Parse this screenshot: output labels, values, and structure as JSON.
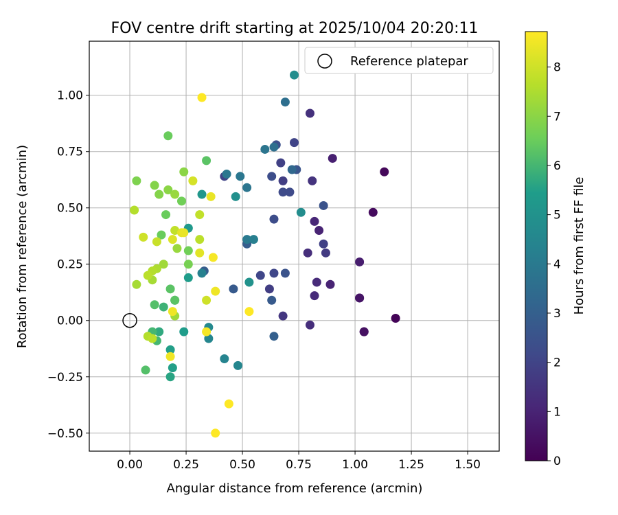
{
  "chart_data": {
    "type": "scatter",
    "title": "FOV centre drift starting at 2025/10/04 20:20:11",
    "xlabel": "Angular distance from reference (arcmin)",
    "ylabel": "Rotation from reference (arcmin)",
    "xlim": [
      -0.18,
      1.64
    ],
    "ylim": [
      -0.58,
      1.24
    ],
    "xticks": [
      0.0,
      0.25,
      0.5,
      0.75,
      1.0,
      1.25,
      1.5
    ],
    "xtick_labels": [
      "0.00",
      "0.25",
      "0.50",
      "0.75",
      "1.00",
      "1.25",
      "1.50"
    ],
    "yticks": [
      -0.5,
      -0.25,
      0.0,
      0.25,
      0.5,
      0.75,
      1.0
    ],
    "ytick_labels": [
      "−0.50",
      "−0.25",
      "0.00",
      "0.25",
      "0.50",
      "0.75",
      "1.00"
    ],
    "grid": true,
    "legend": {
      "position": "top-right",
      "entries": [
        "Reference platepar"
      ]
    },
    "reference_point": {
      "x": 0.0,
      "y": 0.0,
      "label": "Reference platepar"
    },
    "colorbar": {
      "label": "Hours from first FF file",
      "colormap": "viridis",
      "range": [
        0,
        8.72
      ],
      "ticks": [
        0,
        1,
        2,
        3,
        4,
        5,
        6,
        7,
        8
      ],
      "tick_labels": [
        "0",
        "1",
        "2",
        "3",
        "4",
        "5",
        "6",
        "7",
        "8"
      ],
      "stops": [
        "#440154",
        "#482777",
        "#3f4a8a",
        "#31678e",
        "#26838f",
        "#1f9d8a",
        "#6cce5a",
        "#b6de2b",
        "#fee825"
      ]
    },
    "points": [
      {
        "x": 1.18,
        "y": 0.01,
        "h": 0.1
      },
      {
        "x": 1.13,
        "y": 0.66,
        "h": 0.2
      },
      {
        "x": 1.08,
        "y": 0.48,
        "h": 0.3
      },
      {
        "x": 1.04,
        "y": -0.05,
        "h": 0.4
      },
      {
        "x": 1.04,
        "y": -0.05,
        "h": 0.45
      },
      {
        "x": 1.02,
        "y": 0.1,
        "h": 0.5
      },
      {
        "x": 1.02,
        "y": 0.1,
        "h": 0.55
      },
      {
        "x": 1.02,
        "y": 0.26,
        "h": 0.8
      },
      {
        "x": 0.9,
        "y": 0.72,
        "h": 0.9
      },
      {
        "x": 0.89,
        "y": 0.16,
        "h": 1.0
      },
      {
        "x": 0.84,
        "y": 0.4,
        "h": 1.0
      },
      {
        "x": 0.82,
        "y": 0.44,
        "h": 1.1
      },
      {
        "x": 0.83,
        "y": 0.17,
        "h": 1.2
      },
      {
        "x": 0.82,
        "y": 0.11,
        "h": 1.2
      },
      {
        "x": 0.8,
        "y": -0.02,
        "h": 1.3
      },
      {
        "x": 0.79,
        "y": 0.3,
        "h": 1.3
      },
      {
        "x": 0.8,
        "y": 0.92,
        "h": 1.4
      },
      {
        "x": 0.81,
        "y": 0.62,
        "h": 1.5
      },
      {
        "x": 0.68,
        "y": 0.02,
        "h": 1.6
      },
      {
        "x": 0.87,
        "y": 0.3,
        "h": 1.7
      },
      {
        "x": 0.86,
        "y": 0.34,
        "h": 1.9
      },
      {
        "x": 0.62,
        "y": 0.14,
        "h": 1.8
      },
      {
        "x": 0.68,
        "y": 0.62,
        "h": 1.8
      },
      {
        "x": 0.67,
        "y": 0.7,
        "h": 1.9
      },
      {
        "x": 0.42,
        "y": 0.64,
        "h": 2.0
      },
      {
        "x": 0.73,
        "y": 0.79,
        "h": 2.0
      },
      {
        "x": 0.58,
        "y": 0.2,
        "h": 2.1
      },
      {
        "x": 0.64,
        "y": 0.21,
        "h": 2.1
      },
      {
        "x": 0.68,
        "y": 0.57,
        "h": 2.2
      },
      {
        "x": 0.71,
        "y": 0.57,
        "h": 2.2
      },
      {
        "x": 0.64,
        "y": 0.45,
        "h": 2.3
      },
      {
        "x": 0.63,
        "y": 0.64,
        "h": 2.3
      },
      {
        "x": 0.65,
        "y": 0.78,
        "h": 2.4
      },
      {
        "x": 0.69,
        "y": 0.21,
        "h": 2.5
      },
      {
        "x": 0.86,
        "y": 0.51,
        "h": 2.5
      },
      {
        "x": 0.74,
        "y": 0.67,
        "h": 2.6
      },
      {
        "x": 0.63,
        "y": 0.09,
        "h": 2.8
      },
      {
        "x": 0.46,
        "y": 0.14,
        "h": 2.8
      },
      {
        "x": 0.52,
        "y": 0.34,
        "h": 2.9
      },
      {
        "x": 0.33,
        "y": 0.22,
        "h": 2.9
      },
      {
        "x": 0.64,
        "y": -0.07,
        "h": 3.0
      },
      {
        "x": 0.72,
        "y": 0.67,
        "h": 3.3
      },
      {
        "x": 0.69,
        "y": 0.97,
        "h": 3.6
      },
      {
        "x": 0.64,
        "y": 0.77,
        "h": 3.6
      },
      {
        "x": 0.6,
        "y": 0.76,
        "h": 3.8
      },
      {
        "x": 0.52,
        "y": 0.59,
        "h": 3.8
      },
      {
        "x": 0.49,
        "y": 0.64,
        "h": 3.9
      },
      {
        "x": 0.43,
        "y": 0.65,
        "h": 3.9
      },
      {
        "x": 0.52,
        "y": 0.36,
        "h": 4.0
      },
      {
        "x": 0.55,
        "y": 0.36,
        "h": 4.2
      },
      {
        "x": 0.32,
        "y": 0.21,
        "h": 4.3
      },
      {
        "x": 0.42,
        "y": -0.17,
        "h": 4.4
      },
      {
        "x": 0.48,
        "y": -0.2,
        "h": 4.5
      },
      {
        "x": 0.35,
        "y": -0.08,
        "h": 4.5
      },
      {
        "x": 0.35,
        "y": -0.03,
        "h": 4.6
      },
      {
        "x": 0.73,
        "y": 1.09,
        "h": 4.8
      },
      {
        "x": 0.76,
        "y": 0.48,
        "h": 4.8
      },
      {
        "x": 0.47,
        "y": 0.55,
        "h": 4.9
      },
      {
        "x": 0.53,
        "y": 0.17,
        "h": 5.0
      },
      {
        "x": 0.32,
        "y": 0.56,
        "h": 5.2
      },
      {
        "x": 0.26,
        "y": 0.41,
        "h": 5.3
      },
      {
        "x": 0.26,
        "y": 0.19,
        "h": 5.4
      },
      {
        "x": 0.24,
        "y": -0.05,
        "h": 5.4
      },
      {
        "x": 0.19,
        "y": -0.21,
        "h": 5.5
      },
      {
        "x": 0.18,
        "y": -0.13,
        "h": 5.5
      },
      {
        "x": 0.18,
        "y": -0.25,
        "h": 5.6
      },
      {
        "x": 0.13,
        "y": -0.05,
        "h": 5.7
      },
      {
        "x": 0.2,
        "y": 0.09,
        "h": 5.8
      },
      {
        "x": 0.15,
        "y": 0.06,
        "h": 5.9
      },
      {
        "x": 0.12,
        "y": -0.09,
        "h": 6.0
      },
      {
        "x": 0.1,
        "y": -0.05,
        "h": 6.0
      },
      {
        "x": 0.07,
        "y": -0.22,
        "h": 6.2
      },
      {
        "x": 0.11,
        "y": 0.07,
        "h": 6.2
      },
      {
        "x": 0.18,
        "y": 0.14,
        "h": 6.3
      },
      {
        "x": 0.2,
        "y": 0.09,
        "h": 6.3
      },
      {
        "x": 0.34,
        "y": 0.71,
        "h": 6.3
      },
      {
        "x": 0.17,
        "y": 0.82,
        "h": 6.5
      },
      {
        "x": 0.14,
        "y": 0.38,
        "h": 6.5
      },
      {
        "x": 0.16,
        "y": 0.47,
        "h": 6.5
      },
      {
        "x": 0.23,
        "y": 0.53,
        "h": 6.6
      },
      {
        "x": 0.26,
        "y": 0.31,
        "h": 6.6
      },
      {
        "x": 0.26,
        "y": 0.25,
        "h": 6.7
      },
      {
        "x": 0.03,
        "y": 0.62,
        "h": 6.8
      },
      {
        "x": 0.11,
        "y": 0.6,
        "h": 6.9
      },
      {
        "x": 0.13,
        "y": 0.56,
        "h": 6.9
      },
      {
        "x": 0.24,
        "y": 0.66,
        "h": 7.0
      },
      {
        "x": 0.17,
        "y": 0.58,
        "h": 7.0
      },
      {
        "x": 0.2,
        "y": 0.56,
        "h": 7.2
      },
      {
        "x": 0.21,
        "y": 0.32,
        "h": 7.2
      },
      {
        "x": 0.15,
        "y": 0.25,
        "h": 7.3
      },
      {
        "x": 0.2,
        "y": 0.02,
        "h": 7.3
      },
      {
        "x": 0.03,
        "y": 0.16,
        "h": 7.4
      },
      {
        "x": 0.1,
        "y": 0.18,
        "h": 7.4
      },
      {
        "x": 0.12,
        "y": 0.23,
        "h": 7.5
      },
      {
        "x": 0.1,
        "y": 0.22,
        "h": 7.6
      },
      {
        "x": 0.08,
        "y": 0.2,
        "h": 7.7
      },
      {
        "x": 0.02,
        "y": 0.49,
        "h": 7.6
      },
      {
        "x": 0.08,
        "y": -0.07,
        "h": 7.6
      },
      {
        "x": 0.1,
        "y": -0.08,
        "h": 7.7
      },
      {
        "x": 0.31,
        "y": 0.36,
        "h": 7.7
      },
      {
        "x": 0.31,
        "y": 0.47,
        "h": 7.8
      },
      {
        "x": 0.2,
        "y": 0.4,
        "h": 7.8
      },
      {
        "x": 0.12,
        "y": 0.35,
        "h": 7.9
      },
      {
        "x": 0.06,
        "y": 0.37,
        "h": 8.0
      },
      {
        "x": 0.34,
        "y": 0.09,
        "h": 8.0
      },
      {
        "x": 0.28,
        "y": 0.62,
        "h": 8.1
      },
      {
        "x": 0.19,
        "y": 0.36,
        "h": 8.2
      },
      {
        "x": 0.23,
        "y": 0.39,
        "h": 8.3
      },
      {
        "x": 0.31,
        "y": 0.3,
        "h": 8.3
      },
      {
        "x": 0.36,
        "y": 0.55,
        "h": 8.4
      },
      {
        "x": 0.24,
        "y": 0.39,
        "h": 8.4
      },
      {
        "x": 0.18,
        "y": -0.16,
        "h": 8.5
      },
      {
        "x": 0.19,
        "y": 0.04,
        "h": 8.5
      },
      {
        "x": 0.38,
        "y": 0.13,
        "h": 8.5
      },
      {
        "x": 0.37,
        "y": 0.28,
        "h": 8.6
      },
      {
        "x": 0.34,
        "y": -0.05,
        "h": 8.6
      },
      {
        "x": 0.44,
        "y": -0.37,
        "h": 8.7
      },
      {
        "x": 0.38,
        "y": -0.5,
        "h": 8.7
      },
      {
        "x": 0.32,
        "y": 0.99,
        "h": 8.7
      },
      {
        "x": 0.53,
        "y": 0.04,
        "h": 8.7
      }
    ]
  }
}
